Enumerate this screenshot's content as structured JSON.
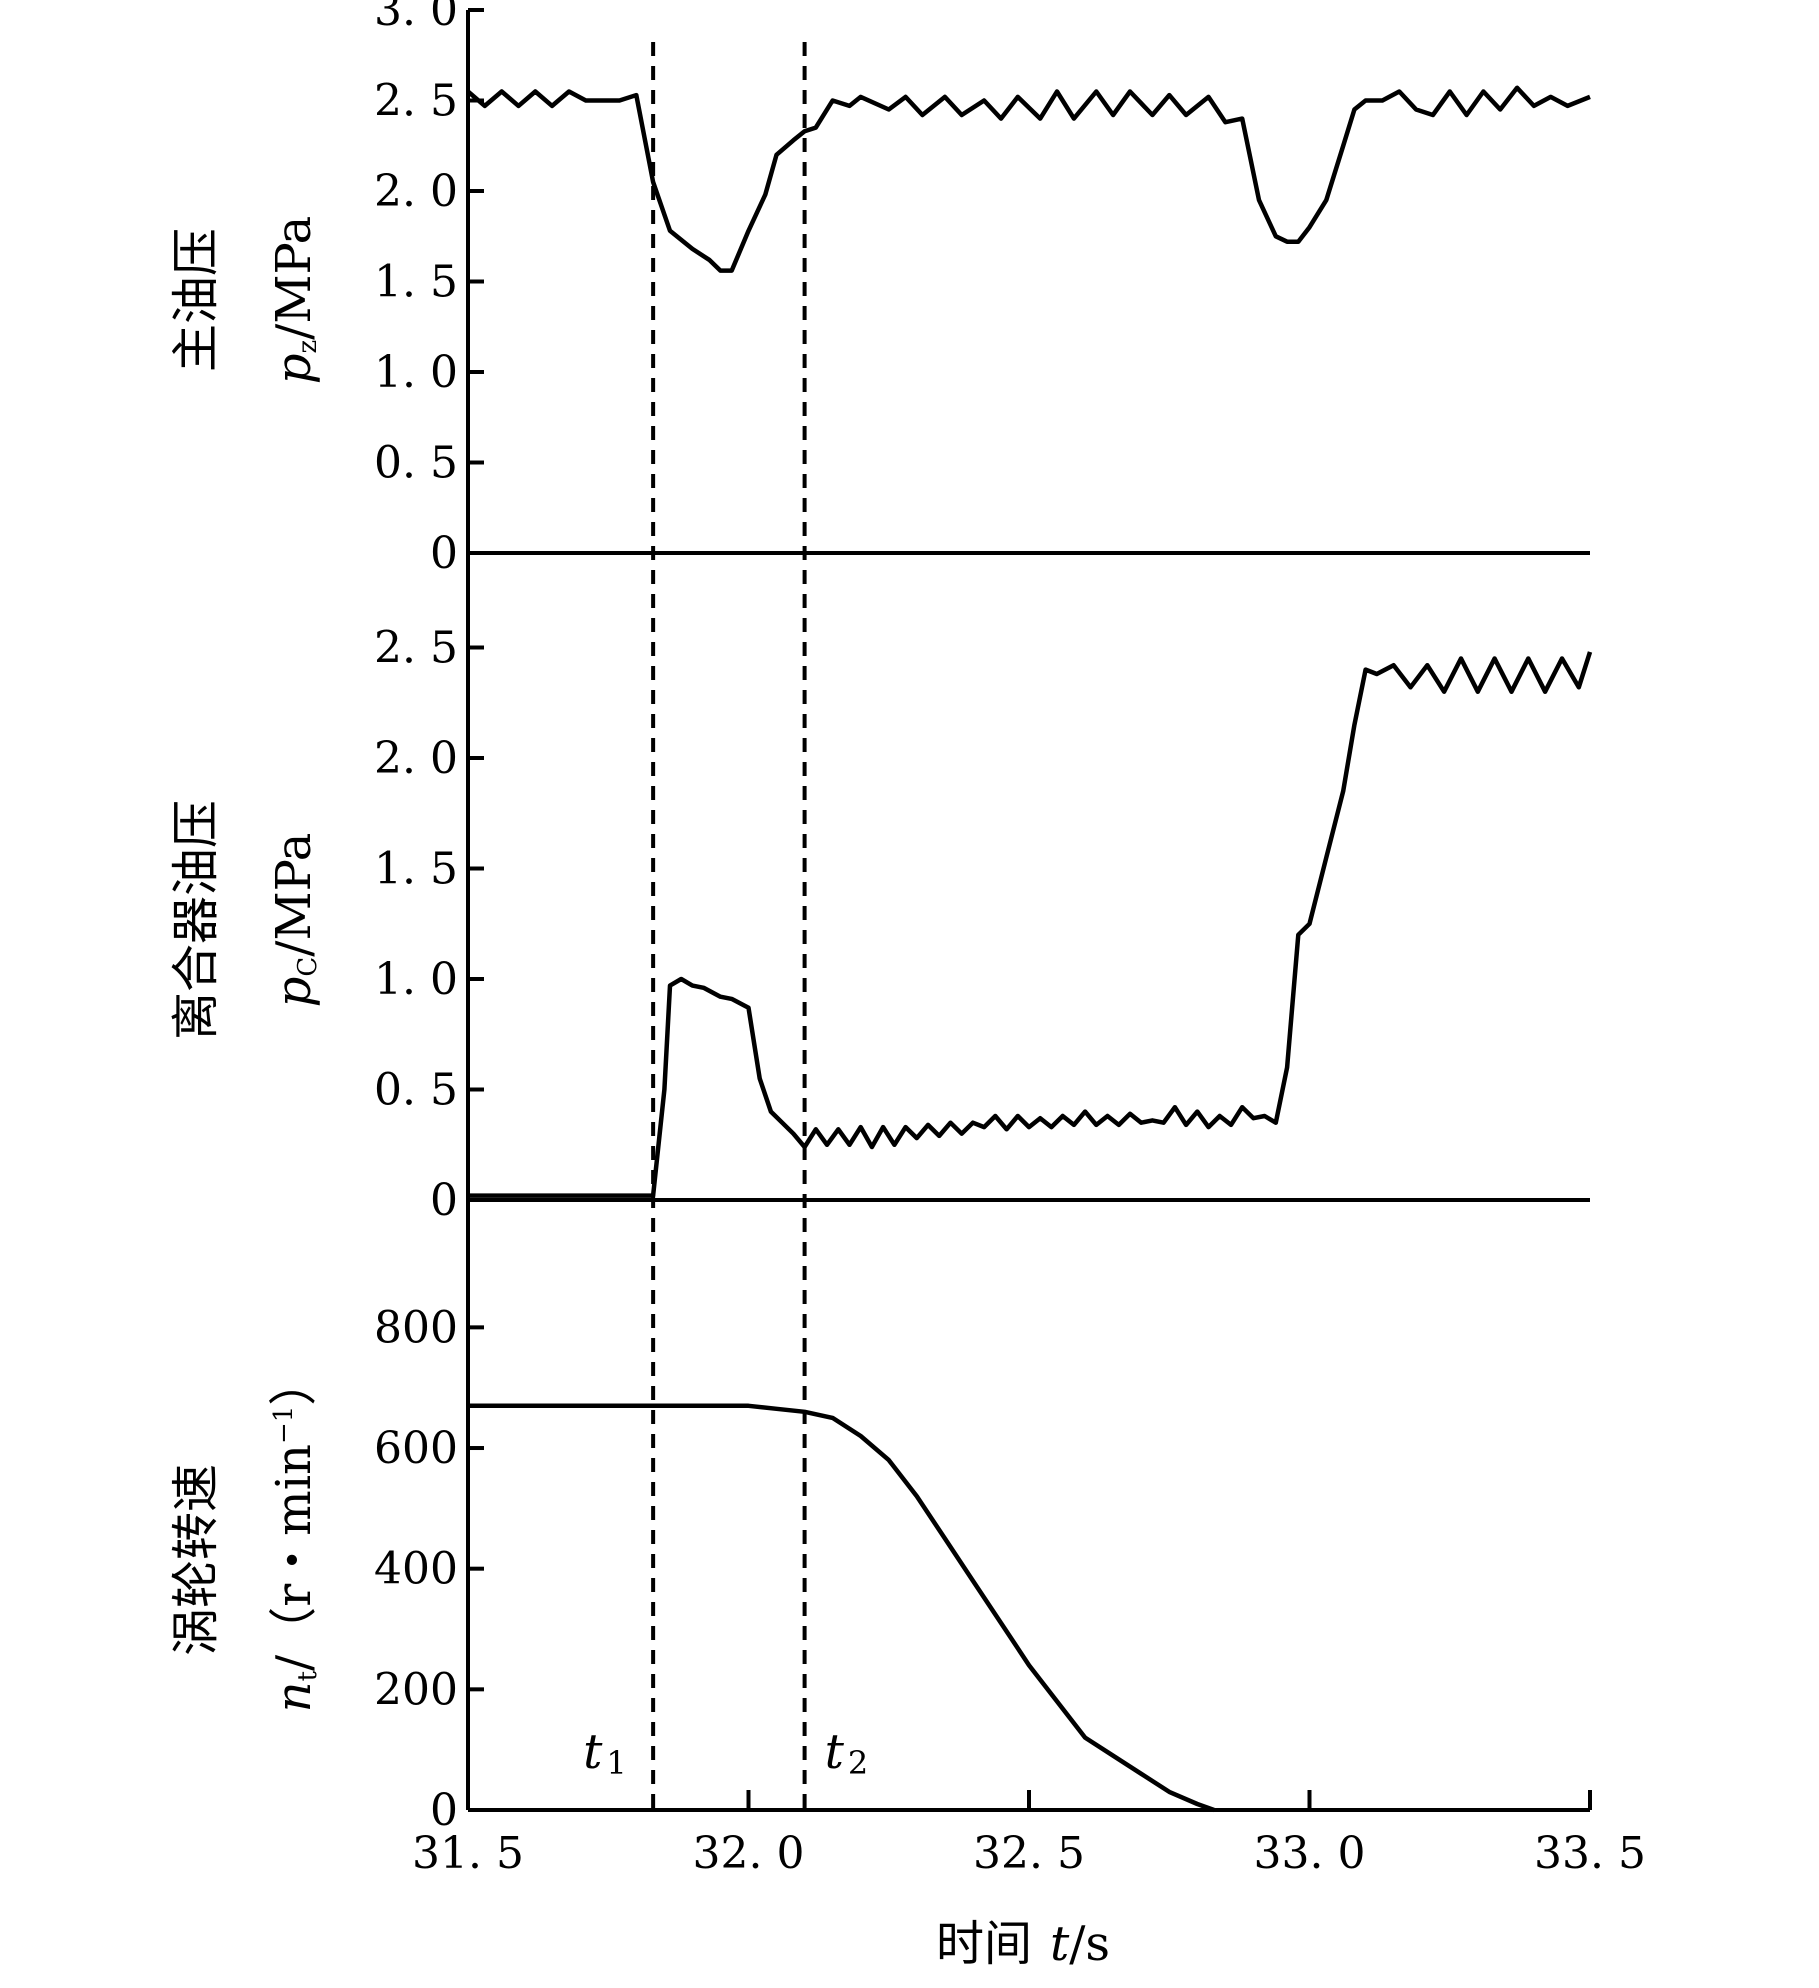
{
  "chart_data": [
    {
      "type": "line",
      "panel": "top",
      "ylabel_cn": "主油压",
      "ylabel_sym": "p",
      "ylabel_sub": "z",
      "ylabel_unit": "/MPa",
      "ylim": [
        0,
        3.0
      ],
      "yticks": [
        0,
        0.5,
        1.0,
        1.5,
        2.0,
        2.5,
        3.0
      ],
      "ytick_labels": [
        "0",
        "0. 5",
        "1. 0",
        "1. 5",
        "2. 0",
        "2. 5",
        "3. 0"
      ],
      "series": [
        {
          "x": [
            31.5,
            31.53,
            31.56,
            31.59,
            31.62,
            31.65,
            31.68,
            31.71,
            31.74,
            31.77,
            31.8,
            31.83,
            31.86,
            31.9,
            31.93,
            31.95,
            31.97,
            32.0,
            32.03,
            32.05,
            32.08,
            32.1,
            32.12,
            32.15,
            32.18,
            32.2,
            32.25,
            32.28,
            32.31,
            32.35,
            32.38,
            32.42,
            32.45,
            32.48,
            32.52,
            32.55,
            32.58,
            32.62,
            32.65,
            32.68,
            32.72,
            32.75,
            32.78,
            32.82,
            32.85,
            32.88,
            32.91,
            32.94,
            32.96,
            32.98,
            33.0,
            33.03,
            33.06,
            33.08,
            33.1,
            33.13,
            33.16,
            33.19,
            33.22,
            33.25,
            33.28,
            33.31,
            33.34,
            33.37,
            33.4,
            33.43,
            33.46,
            33.5
          ],
          "y": [
            2.55,
            2.47,
            2.55,
            2.47,
            2.55,
            2.47,
            2.55,
            2.5,
            2.5,
            2.5,
            2.53,
            2.05,
            1.78,
            1.68,
            1.62,
            1.56,
            1.56,
            1.78,
            1.98,
            2.2,
            2.28,
            2.33,
            2.35,
            2.5,
            2.47,
            2.52,
            2.45,
            2.52,
            2.42,
            2.52,
            2.42,
            2.5,
            2.4,
            2.52,
            2.4,
            2.55,
            2.4,
            2.55,
            2.42,
            2.55,
            2.42,
            2.53,
            2.42,
            2.52,
            2.38,
            2.4,
            1.95,
            1.75,
            1.72,
            1.72,
            1.8,
            1.95,
            2.25,
            2.45,
            2.5,
            2.5,
            2.55,
            2.45,
            2.42,
            2.55,
            2.42,
            2.55,
            2.45,
            2.57,
            2.47,
            2.52,
            2.47,
            2.52
          ]
        }
      ]
    },
    {
      "type": "line",
      "panel": "middle",
      "ylabel_cn": "离合器油压",
      "ylabel_sym": "p",
      "ylabel_sub": "C",
      "ylabel_unit": "/MPa",
      "ylim": [
        0,
        2.5
      ],
      "yticks": [
        0,
        0.5,
        1.0,
        1.5,
        2.0,
        2.5
      ],
      "ytick_labels": [
        "0",
        "0. 5",
        "1. 0",
        "1. 5",
        "2. 0",
        "2. 5"
      ],
      "series": [
        {
          "x": [
            31.5,
            31.83,
            31.85,
            31.86,
            31.88,
            31.9,
            31.92,
            31.95,
            31.97,
            32.0,
            32.02,
            32.04,
            32.06,
            32.08,
            32.1,
            32.12,
            32.14,
            32.16,
            32.18,
            32.2,
            32.22,
            32.24,
            32.26,
            32.28,
            32.3,
            32.32,
            32.34,
            32.36,
            32.38,
            32.4,
            32.42,
            32.44,
            32.46,
            32.48,
            32.5,
            32.52,
            32.54,
            32.56,
            32.58,
            32.6,
            32.62,
            32.64,
            32.66,
            32.68,
            32.7,
            32.72,
            32.74,
            32.76,
            32.78,
            32.8,
            32.82,
            32.84,
            32.86,
            32.88,
            32.9,
            32.92,
            32.94,
            32.96,
            32.98,
            33.0,
            33.03,
            33.06,
            33.08,
            33.1,
            33.12,
            33.15,
            33.18,
            33.21,
            33.24,
            33.27,
            33.3,
            33.33,
            33.36,
            33.39,
            33.42,
            33.45,
            33.48,
            33.5
          ],
          "y": [
            0.02,
            0.02,
            0.5,
            0.97,
            1.0,
            0.97,
            0.96,
            0.92,
            0.91,
            0.87,
            0.55,
            0.4,
            0.35,
            0.3,
            0.24,
            0.32,
            0.25,
            0.32,
            0.25,
            0.33,
            0.24,
            0.33,
            0.25,
            0.33,
            0.28,
            0.34,
            0.29,
            0.35,
            0.3,
            0.35,
            0.33,
            0.38,
            0.32,
            0.38,
            0.33,
            0.37,
            0.33,
            0.38,
            0.34,
            0.4,
            0.34,
            0.38,
            0.34,
            0.39,
            0.35,
            0.36,
            0.35,
            0.42,
            0.34,
            0.4,
            0.33,
            0.38,
            0.34,
            0.42,
            0.37,
            0.38,
            0.35,
            0.6,
            1.2,
            1.25,
            1.55,
            1.85,
            2.15,
            2.4,
            2.38,
            2.42,
            2.32,
            2.42,
            2.3,
            2.45,
            2.3,
            2.45,
            2.3,
            2.45,
            2.3,
            2.45,
            2.32,
            2.48
          ]
        }
      ]
    },
    {
      "type": "line",
      "panel": "bottom",
      "ylabel_cn": "涡轮转速",
      "ylabel_sym": "n",
      "ylabel_sub": "t",
      "ylabel_unit": "/（r・min",
      "ylabel_sup": "−1",
      "ylabel_close": "）",
      "ylim": [
        0,
        900
      ],
      "yticks": [
        0,
        200,
        400,
        600,
        800
      ],
      "ytick_labels": [
        "0",
        "200",
        "400",
        "600",
        "800"
      ],
      "series": [
        {
          "x": [
            31.5,
            32.0,
            32.05,
            32.1,
            32.15,
            32.2,
            32.25,
            32.3,
            32.35,
            32.4,
            32.45,
            32.5,
            32.55,
            32.6,
            32.65,
            32.7,
            32.75,
            32.8,
            32.83
          ],
          "y": [
            670,
            670,
            665,
            660,
            650,
            620,
            580,
            520,
            450,
            380,
            310,
            240,
            180,
            120,
            90,
            60,
            30,
            10,
            0
          ]
        }
      ]
    }
  ],
  "xaxis": {
    "label_cn": "时间",
    "label_sym": "t",
    "label_unit": "/s",
    "xlim": [
      31.5,
      33.5
    ],
    "ticks": [
      31.5,
      32.0,
      32.5,
      33.0,
      33.5
    ],
    "tick_labels": [
      "31. 5",
      "32. 0",
      "32. 5",
      "33. 0",
      "33. 5"
    ]
  },
  "markers": [
    {
      "x": 31.83,
      "sym": "t",
      "sub": "1"
    },
    {
      "x": 32.1,
      "sym": "t",
      "sub": "2"
    }
  ]
}
